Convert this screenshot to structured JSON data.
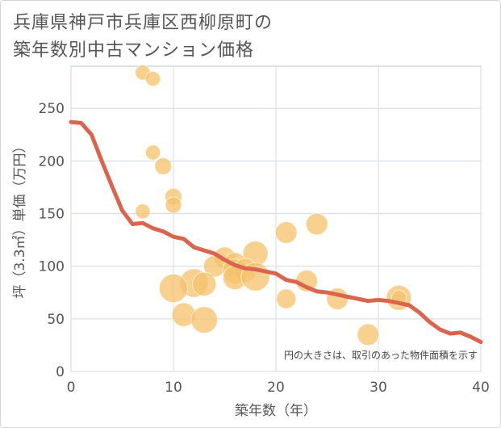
{
  "title_lines": [
    "兵庫県神戸市兵庫区西柳原町の",
    "築年数別中古マンション価格"
  ],
  "chart_data": {
    "type": "scatter",
    "title": "兵庫県神戸市兵庫区西柳原町の築年数別中古マンション価格",
    "xlabel": "築年数（年）",
    "ylabel": "坪（3.3㎡）単価（万円）",
    "xlim": [
      0,
      40
    ],
    "ylim": [
      0,
      290
    ],
    "xticks": [
      0,
      10,
      20,
      30,
      40
    ],
    "yticks": [
      0,
      50,
      100,
      150,
      200,
      250
    ],
    "grid": true,
    "note": "円の大きさは、取引のあった物件面積を示す",
    "colors": {
      "bubble": "#f5c26b",
      "trend": "#d9654f",
      "grid": "#d4d9e3",
      "plot_border": "#b6c3d3"
    },
    "scatter": [
      {
        "x": 7,
        "y": 284,
        "size": 1
      },
      {
        "x": 8,
        "y": 278,
        "size": 1
      },
      {
        "x": 8,
        "y": 208,
        "size": 1
      },
      {
        "x": 9,
        "y": 195,
        "size": 1.3
      },
      {
        "x": 10,
        "y": 166,
        "size": 1.3
      },
      {
        "x": 10,
        "y": 158,
        "size": 1.2
      },
      {
        "x": 7,
        "y": 152,
        "size": 1
      },
      {
        "x": 21,
        "y": 132,
        "size": 2
      },
      {
        "x": 24,
        "y": 140,
        "size": 2
      },
      {
        "x": 18,
        "y": 112,
        "size": 2.5
      },
      {
        "x": 15,
        "y": 108,
        "size": 2
      },
      {
        "x": 14,
        "y": 100,
        "size": 2
      },
      {
        "x": 16,
        "y": 102,
        "size": 2.2
      },
      {
        "x": 16,
        "y": 95,
        "size": 2.5
      },
      {
        "x": 17,
        "y": 96,
        "size": 2.3
      },
      {
        "x": 16,
        "y": 89,
        "size": 2.3
      },
      {
        "x": 18,
        "y": 90,
        "size": 3
      },
      {
        "x": 12,
        "y": 84,
        "size": 3
      },
      {
        "x": 13,
        "y": 83,
        "size": 2.3
      },
      {
        "x": 10,
        "y": 79,
        "size": 3
      },
      {
        "x": 23,
        "y": 86,
        "size": 2
      },
      {
        "x": 21,
        "y": 69,
        "size": 1.7
      },
      {
        "x": 26,
        "y": 69,
        "size": 2
      },
      {
        "x": 32,
        "y": 70,
        "size": 2.5
      },
      {
        "x": 32,
        "y": 70,
        "size": 1
      },
      {
        "x": 11,
        "y": 54,
        "size": 2.3
      },
      {
        "x": 13,
        "y": 49,
        "size": 2.7
      },
      {
        "x": 29,
        "y": 35,
        "size": 2
      }
    ],
    "trend": {
      "x": [
        0,
        1,
        2,
        3,
        4,
        5,
        6,
        7,
        8,
        9,
        10,
        11,
        12,
        13,
        14,
        15,
        16,
        17,
        18,
        19,
        20,
        21,
        22,
        23,
        24,
        25,
        26,
        27,
        28,
        29,
        30,
        31,
        32,
        33,
        34,
        35,
        36,
        37,
        38,
        39,
        40
      ],
      "y": [
        237,
        236,
        225,
        200,
        176,
        153,
        140,
        141,
        136,
        133,
        128,
        126,
        118,
        115,
        112,
        106,
        101,
        98,
        97,
        95,
        93,
        87,
        85,
        80,
        76,
        75,
        73,
        71,
        69,
        67,
        68,
        67,
        65,
        63,
        56,
        47,
        40,
        36,
        37,
        33,
        28
      ]
    }
  }
}
